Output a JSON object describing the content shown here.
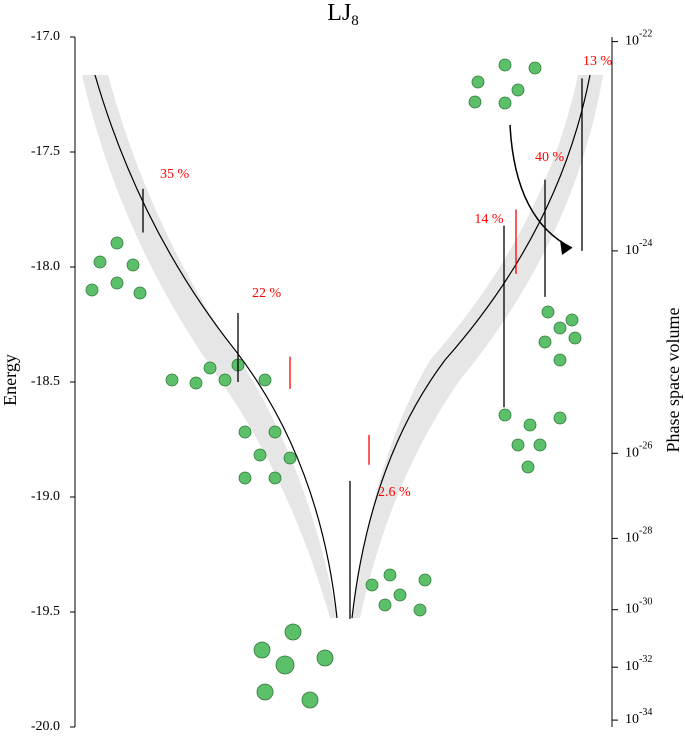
{
  "chart_data": {
    "type": "disconnectivity",
    "title": "LJ",
    "title_subscript": "8",
    "ylabel": "Energy",
    "y2label": "Phase space volume",
    "ylim": [
      -20,
      -17
    ],
    "yticks": [
      {
        "value": -17,
        "label": "-17.0"
      },
      {
        "value": -17.5,
        "label": "-17.5"
      },
      {
        "value": -18,
        "label": "-18.0"
      },
      {
        "value": -18.5,
        "label": "-18.5"
      },
      {
        "value": -19,
        "label": "-19.0"
      },
      {
        "value": -19.5,
        "label": "-19.5"
      },
      {
        "value": -20,
        "label": "-20.0"
      }
    ],
    "y2scale": "log",
    "y2ticks": [
      {
        "value": 1e-22,
        "label": "10",
        "exponent": "-22",
        "energy": -17.02
      },
      {
        "value": 1e-24,
        "label": "10",
        "exponent": "-24",
        "energy": -17.93
      },
      {
        "value": 1e-26,
        "label": "10",
        "exponent": "-26",
        "energy": -18.81
      },
      {
        "value": 1e-28,
        "label": "10",
        "exponent": "-28",
        "energy": -19.18
      },
      {
        "value": 1e-30,
        "label": "10",
        "exponent": "-30",
        "energy": -19.49
      },
      {
        "value": 1e-32,
        "label": "10",
        "exponent": "-32",
        "energy": -19.74
      },
      {
        "value": 1e-34,
        "label": "10",
        "exponent": "-34",
        "energy": -19.97
      }
    ],
    "minima": [
      {
        "top": -17.66,
        "bottom": -17.85,
        "color": "#000000"
      },
      {
        "top": -18.2,
        "bottom": -18.5,
        "color": "#000000"
      },
      {
        "top": -18.39,
        "bottom": -18.53,
        "color": "#ff0000"
      },
      {
        "top": -18.73,
        "bottom": -18.86,
        "color": "#ff0000"
      },
      {
        "top": -18.93,
        "bottom": -19.53,
        "color": "#000000"
      },
      {
        "top": -17.82,
        "bottom": -18.61,
        "color": "#000000"
      },
      {
        "top": -17.75,
        "bottom": -18.03,
        "color": "#ff0000"
      },
      {
        "top": -17.62,
        "bottom": -18.13,
        "color": "#000000"
      },
      {
        "top": -17.18,
        "bottom": -17.93,
        "color": "#000000"
      }
    ],
    "annotations": [
      "35 %",
      "22 %",
      "2.6 %",
      "14 %",
      "40 %",
      "13 %"
    ],
    "annotation_color": "#ff0000"
  }
}
